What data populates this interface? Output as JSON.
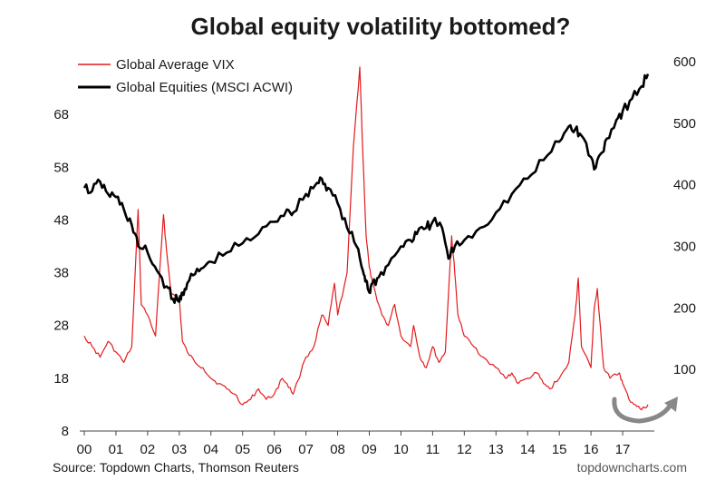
{
  "chart_data": {
    "type": "line",
    "title": "Global equity volatility bottomed?",
    "xlabel": "",
    "ylabel": "",
    "x_ticks": [
      "00",
      "01",
      "02",
      "03",
      "04",
      "05",
      "06",
      "07",
      "08",
      "09",
      "10",
      "11",
      "12",
      "13",
      "14",
      "15",
      "16",
      "17"
    ],
    "y_left": {
      "ticks": [
        8,
        18,
        28,
        38,
        48,
        58,
        68
      ],
      "range": [
        8,
        78
      ]
    },
    "y_right": {
      "ticks": [
        100,
        200,
        300,
        400,
        500,
        600
      ],
      "range": [
        0,
        600
      ]
    },
    "legend_position": "top-left",
    "grid": false,
    "series": [
      {
        "name": "Global Average VIX",
        "axis": "left",
        "color": "#e31a1c",
        "x": [
          0,
          0.25,
          0.5,
          0.75,
          1,
          1.25,
          1.5,
          1.7,
          1.8,
          2,
          2.25,
          2.5,
          2.6,
          2.75,
          3,
          3.1,
          3.25,
          3.5,
          3.75,
          4,
          4.25,
          4.5,
          4.75,
          5,
          5.25,
          5.5,
          5.75,
          6,
          6.25,
          6.4,
          6.6,
          7,
          7.25,
          7.5,
          7.7,
          7.9,
          8,
          8.3,
          8.5,
          8.7,
          8.8,
          8.9,
          9,
          9.1,
          9.2,
          9.4,
          9.6,
          9.8,
          10,
          10.3,
          10.4,
          10.6,
          10.8,
          11,
          11.2,
          11.4,
          11.6,
          11.7,
          11.8,
          12,
          12.3,
          12.6,
          13,
          13.3,
          13.5,
          13.7,
          14,
          14.3,
          14.5,
          14.7,
          15,
          15.3,
          15.5,
          15.6,
          15.7,
          16,
          16.1,
          16.2,
          16.4,
          16.6,
          16.9,
          17,
          17.2,
          17.4,
          17.6,
          17.8
        ],
        "y": [
          26,
          24,
          22,
          25,
          23,
          21,
          24,
          50,
          32,
          30,
          26,
          49,
          42,
          34,
          33,
          25,
          23,
          21,
          20,
          18,
          17,
          16,
          15,
          13,
          14,
          16,
          14,
          15,
          18,
          17,
          15,
          22,
          24,
          30,
          28,
          36,
          30,
          38,
          62,
          77,
          60,
          45,
          39,
          36,
          34,
          30,
          28,
          32,
          26,
          24,
          28,
          22,
          20,
          24,
          21,
          23,
          45,
          38,
          30,
          26,
          24,
          22,
          20,
          18,
          19,
          17,
          18,
          19,
          17,
          16,
          18,
          21,
          30,
          37,
          24,
          20,
          31,
          35,
          20,
          18,
          19,
          17,
          14,
          13,
          12,
          13
        ]
      },
      {
        "name": "Global Equities (MSCI ACWI)",
        "axis": "right",
        "color": "#000000",
        "x": [
          0,
          0.25,
          0.5,
          0.75,
          1,
          1.25,
          1.5,
          1.7,
          2,
          2.3,
          2.6,
          2.8,
          3,
          3.1,
          3.25,
          3.5,
          3.75,
          4,
          4.5,
          5,
          5.5,
          6,
          6.4,
          6.6,
          7,
          7.3,
          7.5,
          7.7,
          8,
          8.3,
          8.6,
          8.8,
          8.9,
          9,
          9.1,
          9.3,
          9.6,
          10,
          10.3,
          10.5,
          10.8,
          11,
          11.3,
          11.5,
          11.7,
          12,
          12.5,
          13,
          13.5,
          14,
          14.5,
          15,
          15.3,
          15.5,
          15.7,
          16,
          16.1,
          16.3,
          16.5,
          16.8,
          17,
          17.3,
          17.6,
          17.8
        ],
        "y": [
          395,
          390,
          405,
          385,
          380,
          360,
          335,
          300,
          290,
          260,
          235,
          215,
          210,
          225,
          240,
          255,
          265,
          275,
          290,
          305,
          320,
          340,
          360,
          355,
          385,
          400,
          410,
          395,
          370,
          330,
          300,
          260,
          245,
          225,
          240,
          250,
          270,
          300,
          310,
          320,
          330,
          340,
          330,
          280,
          300,
          310,
          330,
          355,
          385,
          410,
          440,
          470,
          495,
          490,
          480,
          445,
          425,
          450,
          475,
          505,
          520,
          540,
          560,
          580
        ]
      }
    ],
    "source": "Source: Topdown Charts, Thomson Reuters",
    "brand": "topdowncharts.com"
  }
}
